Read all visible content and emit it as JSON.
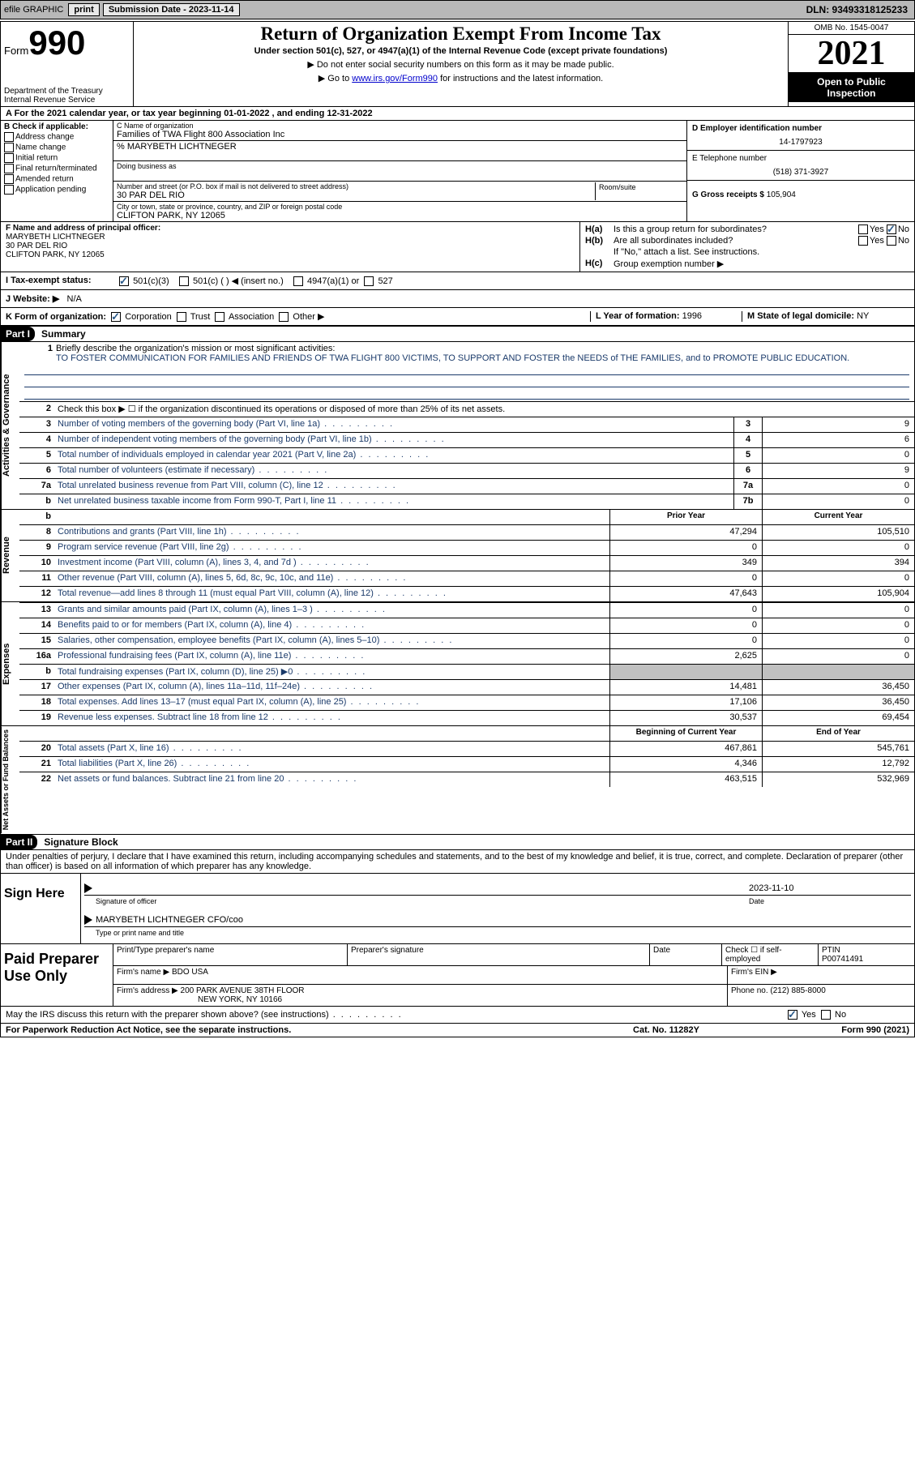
{
  "topbar": {
    "efile": "efile GRAPHIC",
    "print": "print",
    "sub_label": "Submission Date - 2023-11-14",
    "dln": "DLN: 93493318125233"
  },
  "header": {
    "form_word": "Form",
    "form_num": "990",
    "dept": "Department of the Treasury",
    "irs": "Internal Revenue Service",
    "title": "Return of Organization Exempt From Income Tax",
    "sub1": "Under section 501(c), 527, or 4947(a)(1) of the Internal Revenue Code (except private foundations)",
    "sub2a": "▶ Do not enter social security numbers on this form as it may be made public.",
    "sub2b_pre": "▶ Go to ",
    "sub2b_link": "www.irs.gov/Form990",
    "sub2b_post": " for instructions and the latest information.",
    "omb": "OMB No. 1545-0047",
    "year": "2021",
    "inspect1": "Open to Public",
    "inspect2": "Inspection"
  },
  "row_a": "A For the 2021 calendar year, or tax year beginning 01-01-2022   , and ending 12-31-2022",
  "col_b": {
    "hdr": "B Check if applicable:",
    "c1": "Address change",
    "c2": "Name change",
    "c3": "Initial return",
    "c4": "Final return/terminated",
    "c5": "Amended return",
    "c6": "Application pending"
  },
  "col_c": {
    "name_lbl": "C Name of organization",
    "name": "Families of TWA Flight 800 Association Inc",
    "care": "% MARYBETH LICHTNEGER",
    "dba_lbl": "Doing business as",
    "dba": "",
    "addr_lbl": "Number and street (or P.O. box if mail is not delivered to street address)",
    "room_lbl": "Room/suite",
    "addr": "30 PAR DEL RIO",
    "city_lbl": "City or town, state or province, country, and ZIP or foreign postal code",
    "city": "CLIFTON PARK, NY  12065"
  },
  "col_d": {
    "ein_lbl": "D Employer identification number",
    "ein": "14-1797923",
    "tel_lbl": "E Telephone number",
    "tel": "(518) 371-3927",
    "gross_lbl": "G Gross receipts $",
    "gross": "105,904"
  },
  "col_f": {
    "lbl": "F Name and address of principal officer:",
    "l1": "MARYBETH LICHTNEGER",
    "l2": "30 PAR DEL RIO",
    "l3": "CLIFTON PARK, NY  12065"
  },
  "col_h": {
    "ha": "H(a)",
    "ha_txt": "Is this a group return for subordinates?",
    "hb": "H(b)",
    "hb_txt": "Are all subordinates included?",
    "hb_note": "If \"No,\" attach a list. See instructions.",
    "hc": "H(c)",
    "hc_txt": "Group exemption number ▶",
    "yes": "Yes",
    "no": "No"
  },
  "row_i": {
    "lbl": "I   Tax-exempt status:",
    "o1": "501(c)(3)",
    "o2": "501(c) (   ) ◀ (insert no.)",
    "o3": "4947(a)(1) or",
    "o4": "527"
  },
  "row_j": {
    "lbl": "J   Website: ▶",
    "val": "N/A"
  },
  "row_k": {
    "lbl": "K Form of organization:",
    "o1": "Corporation",
    "o2": "Trust",
    "o3": "Association",
    "o4": "Other ▶",
    "l_lbl": "L Year of formation:",
    "l_val": "1996",
    "m_lbl": "M State of legal domicile:",
    "m_val": "NY"
  },
  "part1": {
    "hdr": "Part I",
    "title": "Summary",
    "tab1": "Activities & Governance",
    "tab2": "Revenue",
    "tab3": "Expenses",
    "tab4": "Net Assets or Fund Balances",
    "l1_lbl": "Briefly describe the organization's mission or most significant activities:",
    "l1_txt": "TO FOSTER COMMUNICATION FOR FAMILIES AND FRIENDS OF TWA FLIGHT 800 VICTIMS, TO SUPPORT AND FOSTER the NEEDS of THE FAMILIES, and to PROMOTE PUBLIC EDUCATION.",
    "l2": "Check this box ▶ ☐ if the organization discontinued its operations or disposed of more than 25% of its net assets.",
    "rows_ag": [
      {
        "n": "3",
        "d": "Number of voting members of the governing body (Part VI, line 1a)",
        "b": "3",
        "v": "9"
      },
      {
        "n": "4",
        "d": "Number of independent voting members of the governing body (Part VI, line 1b)",
        "b": "4",
        "v": "6"
      },
      {
        "n": "5",
        "d": "Total number of individuals employed in calendar year 2021 (Part V, line 2a)",
        "b": "5",
        "v": "0"
      },
      {
        "n": "6",
        "d": "Total number of volunteers (estimate if necessary)",
        "b": "6",
        "v": "9"
      },
      {
        "n": "7a",
        "d": "Total unrelated business revenue from Part VIII, column (C), line 12",
        "b": "7a",
        "v": "0"
      },
      {
        "n": "b",
        "d": "Net unrelated business taxable income from Form 990-T, Part I, line 11",
        "b": "7b",
        "v": "0"
      }
    ],
    "prior_hdr": "Prior Year",
    "curr_hdr": "Current Year",
    "rows_rev": [
      {
        "n": "8",
        "d": "Contributions and grants (Part VIII, line 1h)",
        "p": "47,294",
        "c": "105,510"
      },
      {
        "n": "9",
        "d": "Program service revenue (Part VIII, line 2g)",
        "p": "0",
        "c": "0"
      },
      {
        "n": "10",
        "d": "Investment income (Part VIII, column (A), lines 3, 4, and 7d )",
        "p": "349",
        "c": "394"
      },
      {
        "n": "11",
        "d": "Other revenue (Part VIII, column (A), lines 5, 6d, 8c, 9c, 10c, and 11e)",
        "p": "0",
        "c": "0"
      },
      {
        "n": "12",
        "d": "Total revenue—add lines 8 through 11 (must equal Part VIII, column (A), line 12)",
        "p": "47,643",
        "c": "105,904"
      }
    ],
    "rows_exp": [
      {
        "n": "13",
        "d": "Grants and similar amounts paid (Part IX, column (A), lines 1–3 )",
        "p": "0",
        "c": "0"
      },
      {
        "n": "14",
        "d": "Benefits paid to or for members (Part IX, column (A), line 4)",
        "p": "0",
        "c": "0"
      },
      {
        "n": "15",
        "d": "Salaries, other compensation, employee benefits (Part IX, column (A), lines 5–10)",
        "p": "0",
        "c": "0"
      },
      {
        "n": "16a",
        "d": "Professional fundraising fees (Part IX, column (A), line 11e)",
        "p": "2,625",
        "c": "0"
      },
      {
        "n": "b",
        "d": "Total fundraising expenses (Part IX, column (D), line 25) ▶0",
        "p": "",
        "c": "",
        "grey": true
      },
      {
        "n": "17",
        "d": "Other expenses (Part IX, column (A), lines 11a–11d, 11f–24e)",
        "p": "14,481",
        "c": "36,450"
      },
      {
        "n": "18",
        "d": "Total expenses. Add lines 13–17 (must equal Part IX, column (A), line 25)",
        "p": "17,106",
        "c": "36,450"
      },
      {
        "n": "19",
        "d": "Revenue less expenses. Subtract line 18 from line 12",
        "p": "30,537",
        "c": "69,454"
      }
    ],
    "beg_hdr": "Beginning of Current Year",
    "end_hdr": "End of Year",
    "rows_na": [
      {
        "n": "20",
        "d": "Total assets (Part X, line 16)",
        "p": "467,861",
        "c": "545,761"
      },
      {
        "n": "21",
        "d": "Total liabilities (Part X, line 26)",
        "p": "4,346",
        "c": "12,792"
      },
      {
        "n": "22",
        "d": "Net assets or fund balances. Subtract line 21 from line 20",
        "p": "463,515",
        "c": "532,969"
      }
    ]
  },
  "part2": {
    "hdr": "Part II",
    "title": "Signature Block",
    "decl": "Under penalties of perjury, I declare that I have examined this return, including accompanying schedules and statements, and to the best of my knowledge and belief, it is true, correct, and complete. Declaration of preparer (other than officer) is based on all information of which preparer has any knowledge.",
    "sign_here": "Sign Here",
    "sig_of": "Signature of officer",
    "sig_date": "2023-11-10",
    "date_lbl": "Date",
    "name_title": "MARYBETH LICHTNEGER CFO/coo",
    "type_lbl": "Type or print name and title",
    "paid": "Paid Preparer Use Only",
    "p_name_lbl": "Print/Type preparer's name",
    "p_sig_lbl": "Preparer's signature",
    "p_date_lbl": "Date",
    "p_check_lbl": "Check ☐ if self-employed",
    "ptin_lbl": "PTIN",
    "ptin": "P00741491",
    "firm_name_lbl": "Firm's name   ▶",
    "firm_name": "BDO USA",
    "firm_ein_lbl": "Firm's EIN ▶",
    "firm_addr_lbl": "Firm's address ▶",
    "firm_addr1": "200 PARK AVENUE 38TH FLOOR",
    "firm_addr2": "NEW YORK, NY  10166",
    "phone_lbl": "Phone no.",
    "phone": "(212) 885-8000"
  },
  "footer": {
    "discuss": "May the IRS discuss this return with the preparer shown above? (see instructions)",
    "yes": "Yes",
    "no": "No",
    "pra": "For Paperwork Reduction Act Notice, see the separate instructions.",
    "cat": "Cat. No. 11282Y",
    "form": "Form 990 (2021)"
  }
}
